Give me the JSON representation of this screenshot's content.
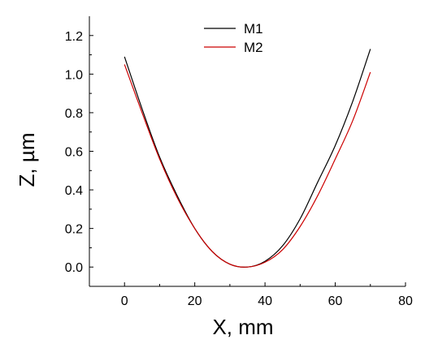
{
  "chart_data": {
    "type": "line",
    "xlabel": "X, mm",
    "ylabel": "Z, µm",
    "xlim": [
      -10,
      80
    ],
    "ylim": [
      -0.1,
      1.3
    ],
    "x_ticks": [
      0,
      20,
      40,
      60,
      80
    ],
    "y_ticks": [
      0.0,
      0.2,
      0.4,
      0.6,
      0.8,
      1.0,
      1.2
    ],
    "x_tick_labels": [
      "0",
      "20",
      "40",
      "60",
      "80"
    ],
    "y_tick_labels": [
      "0.0",
      "0.2",
      "0.4",
      "0.6",
      "0.8",
      "1.0",
      "1.2"
    ],
    "grid": false,
    "legend_position": "top-center",
    "series": [
      {
        "name": "M1",
        "color": "#000000",
        "x": [
          0,
          5,
          10,
          15,
          20,
          25,
          30,
          35,
          40,
          45,
          50,
          55,
          60,
          65,
          70
        ],
        "y": [
          1.09,
          0.82,
          0.57,
          0.37,
          0.2,
          0.08,
          0.015,
          0.0,
          0.03,
          0.11,
          0.25,
          0.44,
          0.63,
          0.86,
          1.13
        ]
      },
      {
        "name": "M2",
        "color": "#cc0000",
        "x": [
          0,
          5,
          10,
          15,
          20,
          25,
          30,
          35,
          40,
          45,
          50,
          55,
          60,
          65,
          70
        ],
        "y": [
          1.05,
          0.8,
          0.56,
          0.36,
          0.2,
          0.08,
          0.015,
          0.0,
          0.025,
          0.09,
          0.21,
          0.37,
          0.56,
          0.76,
          1.01
        ]
      }
    ]
  }
}
